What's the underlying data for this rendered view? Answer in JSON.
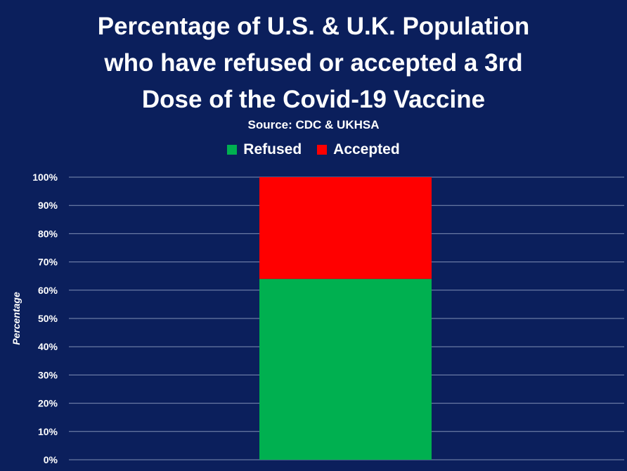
{
  "chart_data": {
    "type": "bar",
    "stacked": true,
    "title_lines": [
      "Percentage of U.S. & U.K. Population",
      "who have refused or accepted a 3rd",
      "Dose of the Covid-19 Vaccine"
    ],
    "subtitle": "Source: CDC & UKHSA",
    "xlabel": "",
    "ylabel": "Percentage",
    "ylim": [
      0,
      100
    ],
    "yticks": [
      "0%",
      "10%",
      "20%",
      "30%",
      "40%",
      "50%",
      "60%",
      "70%",
      "80%",
      "90%",
      "100%"
    ],
    "categories": [
      ""
    ],
    "series": [
      {
        "name": "Refused",
        "values": [
          64
        ],
        "color": "#00b050"
      },
      {
        "name": "Accepted",
        "values": [
          36
        ],
        "color": "#ff0000"
      }
    ],
    "grid": true,
    "legend_position": "top-center",
    "background": "#0b1f5c"
  }
}
